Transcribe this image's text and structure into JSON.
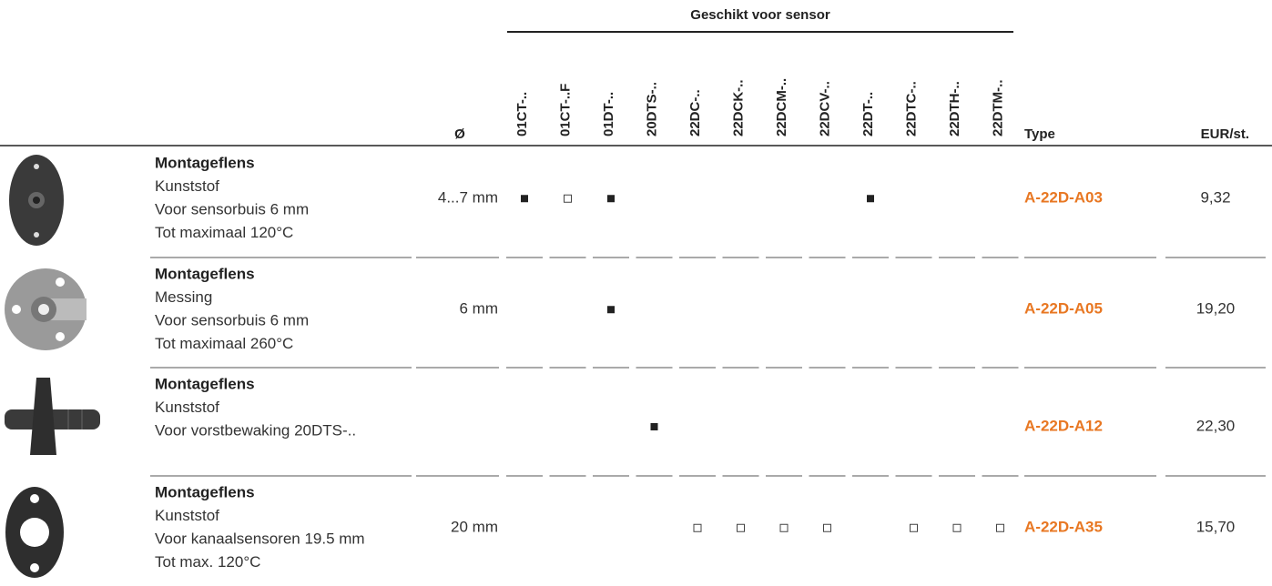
{
  "header": {
    "group_title": "Geschikt voor sensor",
    "diameter": "Ø",
    "sensors": [
      "01CT-..",
      "01CT-..F",
      "01DT-..",
      "20DTS-..",
      "22DC-..",
      "22DCK-..",
      "22DCM-..",
      "22DCV-..",
      "22DT-..",
      "22DTC-..",
      "22DTH-..",
      "22DTM-.."
    ],
    "type": "Type",
    "price": "EUR/st."
  },
  "rows": [
    {
      "lines": [
        "Montageflens",
        "Kunststof",
        "Voor sensorbuis 6 mm",
        "Tot maximaal 120°C"
      ],
      "diameter": "4...7 mm",
      "marks": [
        "filled",
        "open",
        "filled",
        null,
        null,
        null,
        null,
        null,
        "filled",
        null,
        null,
        null
      ],
      "type": "A-22D-A03",
      "price": "9,32"
    },
    {
      "lines": [
        "Montageflens",
        "Messing",
        "Voor sensorbuis 6 mm",
        "Tot maximaal 260°C"
      ],
      "diameter": "6 mm",
      "marks": [
        null,
        null,
        "filled",
        null,
        null,
        null,
        null,
        null,
        null,
        null,
        null,
        null
      ],
      "type": "A-22D-A05",
      "price": "19,20"
    },
    {
      "lines": [
        "Montageflens",
        "Kunststof",
        "Voor vorstbewaking 20DTS-.."
      ],
      "diameter": null,
      "marks": [
        null,
        null,
        null,
        "filled",
        null,
        null,
        null,
        null,
        null,
        null,
        null,
        null
      ],
      "type": "A-22D-A12",
      "price": "22,30"
    },
    {
      "lines": [
        "Montageflens",
        "Kunststof",
        "Voor kanaalsensoren 19.5 mm",
        "Tot max. 120°C"
      ],
      "diameter": "20 mm",
      "marks": [
        null,
        null,
        null,
        null,
        "open",
        "open",
        "open",
        "open",
        null,
        "open",
        "open",
        "open"
      ],
      "type": "A-22D-A35",
      "price": "15,70"
    }
  ]
}
